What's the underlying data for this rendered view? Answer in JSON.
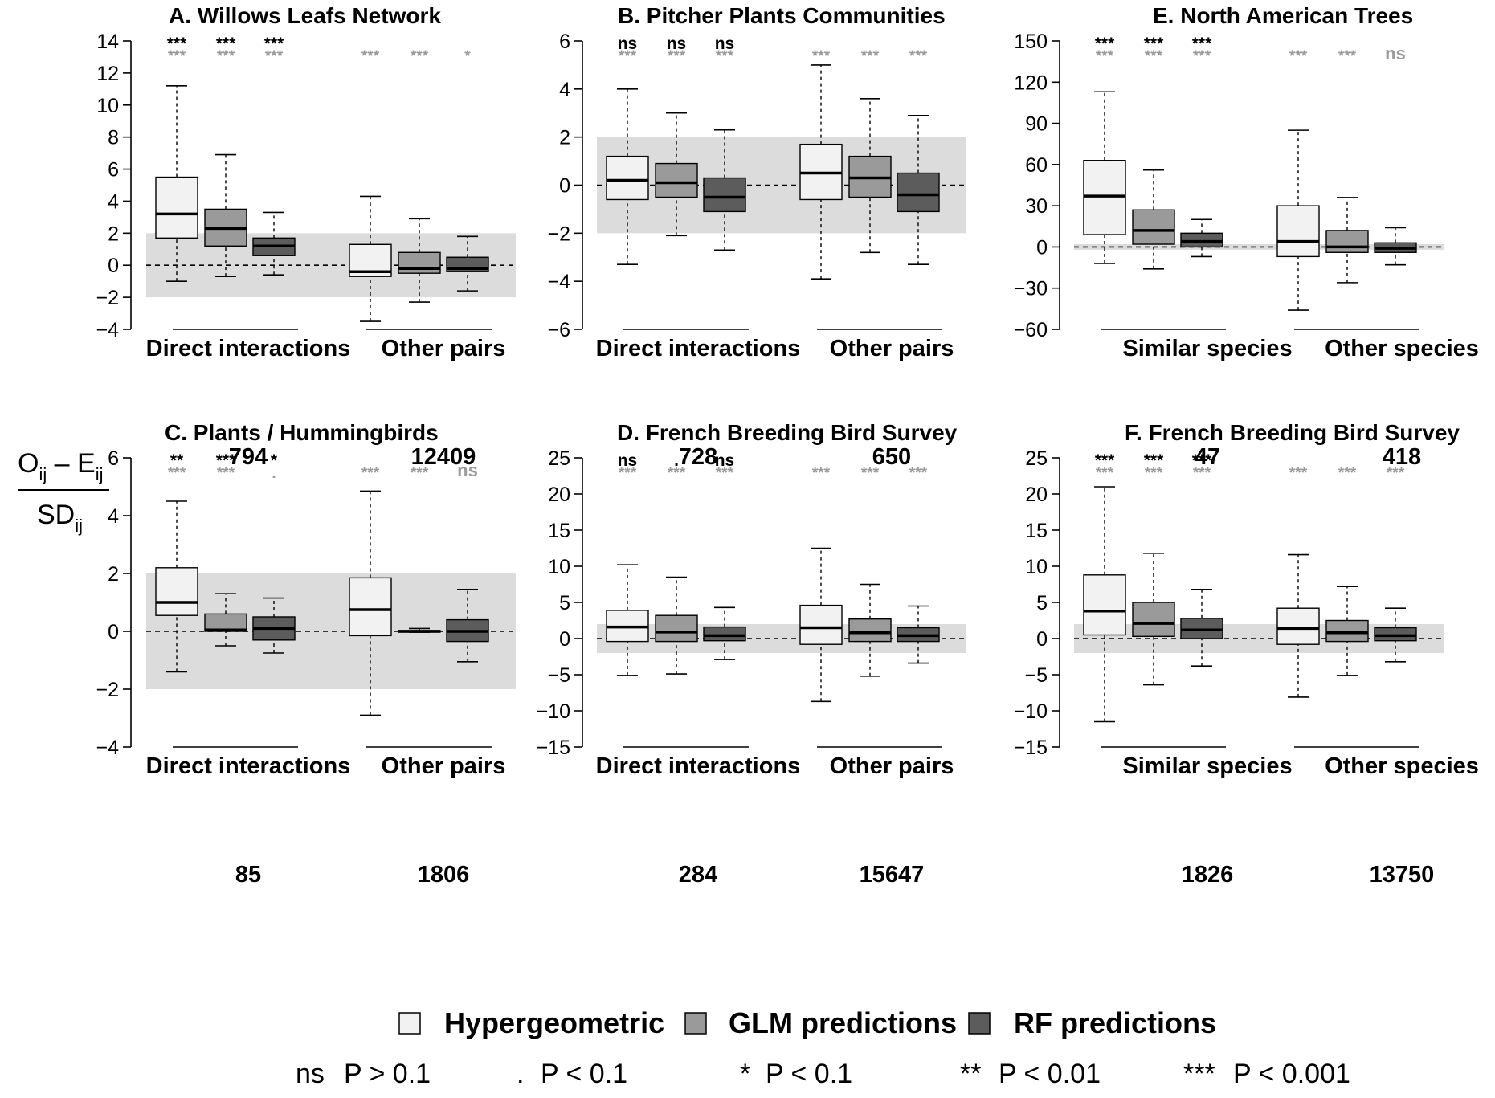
{
  "y_axis_label": {
    "numerator_o": "O",
    "numerator_o_sub": "ij",
    "numerator_minus": " – E",
    "numerator_e_sub": "ij",
    "denominator": "SD",
    "denominator_sub": "ij"
  },
  "colors": {
    "hypergeometric": "#f2f2f2",
    "glm": "#9a9a9a",
    "rf": "#5c5c5c",
    "band": "#dcdcdc",
    "sig_top": "#000000",
    "sig_bottom": "#9a9a9a"
  },
  "chart_data": [
    {
      "type": "box",
      "title": "A. Willows Leafs Network",
      "ylim": [
        -4,
        14
      ],
      "yticks": [
        -4,
        -2,
        0,
        2,
        4,
        6,
        8,
        10,
        12,
        14
      ],
      "ytick_labels": [
        "−4",
        "−2",
        "0",
        "2",
        "4",
        "6",
        "8",
        "10",
        "12",
        "14"
      ],
      "band": [
        -2,
        2
      ],
      "groups": [
        {
          "label": "Direct interactions",
          "n": "794",
          "boxes": [
            {
              "series": "Hypergeometric",
              "whisker_low": -1,
              "q1": 1.7,
              "median": 3.2,
              "q3": 5.5,
              "whisker_high": 11.2
            },
            {
              "series": "GLM predictions",
              "whisker_low": -0.7,
              "q1": 1.2,
              "median": 2.3,
              "q3": 3.5,
              "whisker_high": 6.9
            },
            {
              "series": "RF predictions",
              "whisker_low": -0.6,
              "q1": 0.6,
              "median": 1.2,
              "q3": 1.7,
              "whisker_high": 3.3
            }
          ],
          "sig_top": [
            "***",
            "***",
            "***"
          ],
          "sig_bottom": [
            "***",
            "***",
            "***"
          ]
        },
        {
          "label": "Other pairs",
          "n": "12409",
          "boxes": [
            {
              "series": "Hypergeometric",
              "whisker_low": -3.5,
              "q1": -0.7,
              "median": -0.4,
              "q3": 1.3,
              "whisker_high": 4.3
            },
            {
              "series": "GLM predictions",
              "whisker_low": -2.3,
              "q1": -0.5,
              "median": -0.2,
              "q3": 0.8,
              "whisker_high": 2.9
            },
            {
              "series": "RF predictions",
              "whisker_low": -1.6,
              "q1": -0.4,
              "median": -0.2,
              "q3": 0.5,
              "whisker_high": 1.8
            }
          ],
          "sig_top": [
            "",
            "",
            ""
          ],
          "sig_bottom": [
            "***",
            "***",
            "*"
          ]
        }
      ]
    },
    {
      "type": "box",
      "title": "B. Pitcher Plants Communities",
      "ylim": [
        -6,
        6
      ],
      "yticks": [
        -6,
        -4,
        -2,
        0,
        2,
        4,
        6
      ],
      "ytick_labels": [
        "−6",
        "−4",
        "−2",
        "0",
        "2",
        "4",
        "6"
      ],
      "band": [
        -2,
        2
      ],
      "groups": [
        {
          "label": "Direct interactions",
          "n": "728",
          "boxes": [
            {
              "series": "Hypergeometric",
              "whisker_low": -3.3,
              "q1": -0.6,
              "median": 0.2,
              "q3": 1.2,
              "whisker_high": 4.0
            },
            {
              "series": "GLM predictions",
              "whisker_low": -2.1,
              "q1": -0.5,
              "median": 0.1,
              "q3": 0.9,
              "whisker_high": 3.0
            },
            {
              "series": "RF predictions",
              "whisker_low": -2.7,
              "q1": -1.1,
              "median": -0.5,
              "q3": 0.3,
              "whisker_high": 2.3
            }
          ],
          "sig_top": [
            "ns",
            "ns",
            "ns"
          ],
          "sig_bottom": [
            "***",
            "***",
            "***"
          ]
        },
        {
          "label": "Other pairs",
          "n": "650",
          "boxes": [
            {
              "series": "Hypergeometric",
              "whisker_low": -3.9,
              "q1": -0.6,
              "median": 0.5,
              "q3": 1.7,
              "whisker_high": 5.0
            },
            {
              "series": "GLM predictions",
              "whisker_low": -2.8,
              "q1": -0.5,
              "median": 0.3,
              "q3": 1.2,
              "whisker_high": 3.6
            },
            {
              "series": "RF predictions",
              "whisker_low": -3.3,
              "q1": -1.1,
              "median": -0.4,
              "q3": 0.5,
              "whisker_high": 2.9
            }
          ],
          "sig_top": [
            "",
            "",
            ""
          ],
          "sig_bottom": [
            "***",
            "***",
            "***"
          ]
        }
      ]
    },
    {
      "type": "box",
      "title": "E. North American Trees",
      "ylim": [
        -60,
        150
      ],
      "yticks": [
        -60,
        -30,
        0,
        30,
        60,
        90,
        120,
        150
      ],
      "ytick_labels": [
        "−60",
        "−30",
        "0",
        "30",
        "60",
        "90",
        "120",
        "150"
      ],
      "band": [
        -2,
        2
      ],
      "groups": [
        {
          "label": "Similar species",
          "n": "47",
          "boxes": [
            {
              "series": "Hypergeometric",
              "whisker_low": -12,
              "q1": 9,
              "median": 37,
              "q3": 63,
              "whisker_high": 113
            },
            {
              "series": "GLM predictions",
              "whisker_low": -16,
              "q1": 2,
              "median": 12,
              "q3": 27,
              "whisker_high": 56
            },
            {
              "series": "RF predictions",
              "whisker_low": -7,
              "q1": 0,
              "median": 4,
              "q3": 10,
              "whisker_high": 20
            }
          ],
          "sig_top": [
            "***",
            "***",
            "***"
          ],
          "sig_bottom": [
            "***",
            "***",
            "***"
          ]
        },
        {
          "label": "Other species",
          "n": "418",
          "boxes": [
            {
              "series": "Hypergeometric",
              "whisker_low": -46,
              "q1": -7,
              "median": 4,
              "q3": 30,
              "whisker_high": 85
            },
            {
              "series": "GLM predictions",
              "whisker_low": -26,
              "q1": -4,
              "median": 0,
              "q3": 12,
              "whisker_high": 36
            },
            {
              "series": "RF predictions",
              "whisker_low": -13,
              "q1": -4,
              "median": -1,
              "q3": 3,
              "whisker_high": 14
            }
          ],
          "sig_top": [
            "",
            "",
            ""
          ],
          "sig_bottom": [
            "***",
            "***",
            "ns"
          ]
        }
      ]
    },
    {
      "type": "box",
      "title": "C. Plants / Hummingbirds",
      "ylim": [
        -4,
        6
      ],
      "yticks": [
        -4,
        -2,
        0,
        2,
        4,
        6
      ],
      "ytick_labels": [
        "−4",
        "−2",
        "0",
        "2",
        "4",
        "6"
      ],
      "band": [
        -2,
        2
      ],
      "groups": [
        {
          "label": "Direct interactions",
          "n": "85",
          "boxes": [
            {
              "series": "Hypergeometric",
              "whisker_low": -1.4,
              "q1": 0.55,
              "median": 1.0,
              "q3": 2.2,
              "whisker_high": 4.5
            },
            {
              "series": "GLM predictions",
              "whisker_low": -0.5,
              "q1": 0,
              "median": 0.05,
              "q3": 0.6,
              "whisker_high": 1.3
            },
            {
              "series": "RF predictions",
              "whisker_low": -0.75,
              "q1": -0.3,
              "median": 0.1,
              "q3": 0.5,
              "whisker_high": 1.15
            }
          ],
          "sig_top": [
            "**",
            "***",
            "*"
          ],
          "sig_bottom": [
            "***",
            "***",
            "."
          ]
        },
        {
          "label": "Other pairs",
          "n": "1806",
          "boxes": [
            {
              "series": "Hypergeometric",
              "whisker_low": -2.9,
              "q1": -0.15,
              "median": 0.75,
              "q3": 1.85,
              "whisker_high": 4.85
            },
            {
              "series": "GLM predictions",
              "whisker_low": -0.03,
              "q1": -0.02,
              "median": 0,
              "q3": 0.03,
              "whisker_high": 0.1
            },
            {
              "series": "RF predictions",
              "whisker_low": -1.05,
              "q1": -0.35,
              "median": 0,
              "q3": 0.4,
              "whisker_high": 1.45
            }
          ],
          "sig_top": [
            "",
            "",
            ""
          ],
          "sig_bottom": [
            "***",
            "***",
            "ns"
          ]
        }
      ]
    },
    {
      "type": "box",
      "title": "D. French Breeding Bird Survey",
      "ylim": [
        -15,
        25
      ],
      "yticks": [
        -15,
        -10,
        -5,
        0,
        5,
        10,
        15,
        20,
        25
      ],
      "ytick_labels": [
        "−15",
        "−10",
        "−5",
        "0",
        "5",
        "10",
        "15",
        "20",
        "25"
      ],
      "band": [
        -2,
        2
      ],
      "groups": [
        {
          "label": "Direct interactions",
          "n": "284",
          "boxes": [
            {
              "series": "Hypergeometric",
              "whisker_low": -5.1,
              "q1": -0.4,
              "median": 1.6,
              "q3": 3.9,
              "whisker_high": 10.2
            },
            {
              "series": "GLM predictions",
              "whisker_low": -4.9,
              "q1": -0.4,
              "median": 0.9,
              "q3": 3.2,
              "whisker_high": 8.5
            },
            {
              "series": "RF predictions",
              "whisker_low": -2.9,
              "q1": -0.3,
              "median": 0.4,
              "q3": 1.6,
              "whisker_high": 4.3
            }
          ],
          "sig_top": [
            "ns",
            ".",
            "ns"
          ],
          "sig_bottom": [
            "***",
            "***",
            "***"
          ]
        },
        {
          "label": "Other pairs",
          "n": "15647",
          "boxes": [
            {
              "series": "Hypergeometric",
              "whisker_low": -8.7,
              "q1": -0.8,
              "median": 1.5,
              "q3": 4.6,
              "whisker_high": 12.5
            },
            {
              "series": "GLM predictions",
              "whisker_low": -5.2,
              "q1": -0.4,
              "median": 0.8,
              "q3": 2.7,
              "whisker_high": 7.5
            },
            {
              "series": "RF predictions",
              "whisker_low": -3.4,
              "q1": -0.4,
              "median": 0.4,
              "q3": 1.5,
              "whisker_high": 4.5
            }
          ],
          "sig_top": [
            "",
            "",
            ""
          ],
          "sig_bottom": [
            "***",
            "***",
            "***"
          ]
        }
      ]
    },
    {
      "type": "box",
      "title": "F. French Breeding Bird Survey",
      "ylim": [
        -15,
        25
      ],
      "yticks": [
        -15,
        -10,
        -5,
        0,
        5,
        10,
        15,
        20,
        25
      ],
      "ytick_labels": [
        "−15",
        "−10",
        "−5",
        "0",
        "5",
        "10",
        "15",
        "20",
        "25"
      ],
      "band": [
        -2,
        2
      ],
      "groups": [
        {
          "label": "Similar species",
          "n": "1826",
          "boxes": [
            {
              "series": "Hypergeometric",
              "whisker_low": -11.5,
              "q1": 0.5,
              "median": 3.8,
              "q3": 8.8,
              "whisker_high": 21
            },
            {
              "series": "GLM predictions",
              "whisker_low": -6.4,
              "q1": 0.3,
              "median": 2.1,
              "q3": 5.0,
              "whisker_high": 11.8
            },
            {
              "series": "RF predictions",
              "whisker_low": -3.8,
              "q1": 0,
              "median": 1.2,
              "q3": 2.8,
              "whisker_high": 6.8
            }
          ],
          "sig_top": [
            "***",
            "***",
            "***"
          ],
          "sig_bottom": [
            "***",
            "***",
            "***"
          ]
        },
        {
          "label": "Other species",
          "n": "13750",
          "boxes": [
            {
              "series": "Hypergeometric",
              "whisker_low": -8.1,
              "q1": -0.8,
              "median": 1.4,
              "q3": 4.2,
              "whisker_high": 11.6
            },
            {
              "series": "GLM predictions",
              "whisker_low": -5.1,
              "q1": -0.4,
              "median": 0.8,
              "q3": 2.5,
              "whisker_high": 7.2
            },
            {
              "series": "RF predictions",
              "whisker_low": -3.2,
              "q1": -0.3,
              "median": 0.4,
              "q3": 1.5,
              "whisker_high": 4.2
            }
          ],
          "sig_top": [
            "",
            "",
            ""
          ],
          "sig_bottom": [
            "***",
            "***",
            "***"
          ]
        }
      ]
    }
  ],
  "legend": {
    "items": [
      {
        "label": "Hypergeometric",
        "color_key": "hypergeometric"
      },
      {
        "label": "GLM predictions",
        "color_key": "glm"
      },
      {
        "label": "RF predictions",
        "color_key": "rf"
      }
    ]
  },
  "significance_key": [
    {
      "symbol": "ns",
      "text": "P > 0.1"
    },
    {
      "symbol": ".",
      "text": "P < 0.1"
    },
    {
      "symbol": "*",
      "text": "P < 0.1"
    },
    {
      "symbol": "**",
      "text": "P < 0.01"
    },
    {
      "symbol": "***",
      "text": "P < 0.001"
    }
  ]
}
